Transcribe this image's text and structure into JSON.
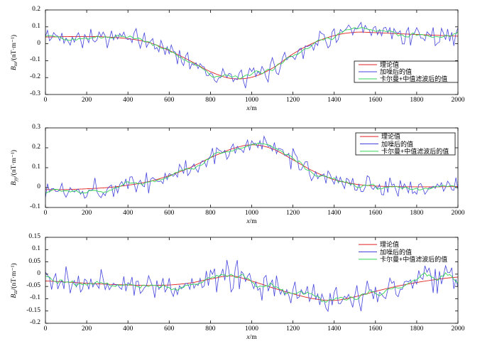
{
  "figure": {
    "background": "#ffffff",
    "axis_color": "#000000",
    "text_color": "#000000"
  },
  "chart_data": [
    {
      "type": "line",
      "xlabel": {
        "var": "x",
        "unit": "/m"
      },
      "ylabel": {
        "var": "B",
        "sub": "xx",
        "unit": "/(nT·m⁻¹)"
      },
      "xlim": [
        0,
        2000
      ],
      "ylim": [
        -0.3,
        0.2
      ],
      "x_ticks": [
        0,
        200,
        400,
        600,
        800,
        1000,
        1200,
        1400,
        1600,
        1800,
        2000
      ],
      "y_ticks": [
        0.2,
        0.1,
        0,
        -0.1,
        -0.2,
        -0.3
      ],
      "x": [
        0,
        100,
        200,
        300,
        400,
        500,
        600,
        700,
        800,
        900,
        1000,
        1100,
        1200,
        1300,
        1400,
        1500,
        1600,
        1700,
        1800,
        1900,
        2000
      ],
      "series": [
        {
          "name": "理论值",
          "role": "theory",
          "color": "#e02222",
          "values": [
            0.04,
            0.042,
            0.043,
            0.04,
            0.03,
            0.008,
            -0.04,
            -0.1,
            -0.165,
            -0.205,
            -0.198,
            -0.145,
            -0.06,
            0.005,
            0.048,
            0.068,
            0.066,
            0.06,
            0.055,
            0.05,
            0.045
          ]
        },
        {
          "name": "加噪后的值",
          "role": "noisy",
          "color": "#4444dd",
          "noise_amplitude": 0.075,
          "n_points": 201,
          "seed": 42
        },
        {
          "name": "卡尔曼+中值滤波后的值",
          "role": "filtered",
          "color": "#33d455",
          "smooth_window": 7
        }
      ],
      "legend": {
        "location": "lower-right-inside",
        "border": true,
        "entries": [
          "理论值",
          "加噪后的值",
          "卡尔曼+中值滤波后的值"
        ]
      }
    },
    {
      "type": "line",
      "xlabel": {
        "var": "x",
        "unit": "/m"
      },
      "ylabel": {
        "var": "B",
        "sub": "yy",
        "unit": "/(nT·m⁻¹)"
      },
      "xlim": [
        0,
        2000
      ],
      "ylim": [
        -0.1,
        0.3
      ],
      "x_ticks": [
        0,
        200,
        400,
        600,
        800,
        1000,
        1200,
        1400,
        1600,
        1800,
        2000
      ],
      "y_ticks": [
        0.3,
        0.2,
        0.1,
        0,
        -0.1
      ],
      "x": [
        0,
        100,
        200,
        300,
        400,
        500,
        600,
        700,
        800,
        900,
        1000,
        1100,
        1200,
        1300,
        1400,
        1500,
        1600,
        1700,
        1800,
        1900,
        2000
      ],
      "series": [
        {
          "name": "理论值",
          "role": "theory",
          "color": "#e02222",
          "values": [
            -0.01,
            -0.01,
            -0.006,
            0.0,
            0.012,
            0.03,
            0.06,
            0.1,
            0.15,
            0.193,
            0.215,
            0.195,
            0.14,
            0.082,
            0.04,
            0.018,
            0.008,
            0.005,
            0.004,
            0.004,
            0.005
          ]
        },
        {
          "name": "加噪后的值",
          "role": "noisy",
          "color": "#4444dd",
          "noise_amplitude": 0.065,
          "n_points": 201,
          "seed": 1337
        },
        {
          "name": "卡尔曼+中值滤波后的值",
          "role": "filtered",
          "color": "#33d455",
          "smooth_window": 7
        }
      ],
      "legend": {
        "location": "upper-right-inside",
        "border": true,
        "entries": [
          "理论值",
          "加噪后的值",
          "卡尔曼+中值滤波后的值"
        ]
      }
    },
    {
      "type": "line",
      "xlabel": {
        "var": "x",
        "unit": "/m"
      },
      "ylabel": {
        "var": "B",
        "sub": "zz",
        "unit": "/(nT·m⁻¹)"
      },
      "xlim": [
        0,
        2000
      ],
      "ylim": [
        -0.2,
        0.15
      ],
      "x_ticks": [
        0,
        200,
        400,
        600,
        800,
        1000,
        1200,
        1400,
        1600,
        1800,
        2000
      ],
      "y_ticks": [
        0.15,
        0.1,
        0.05,
        0,
        -0.05,
        -0.1,
        -0.15,
        -0.2
      ],
      "x": [
        0,
        100,
        200,
        300,
        400,
        500,
        600,
        700,
        800,
        900,
        1000,
        1100,
        1200,
        1300,
        1400,
        1500,
        1600,
        1700,
        1800,
        1900,
        2000
      ],
      "series": [
        {
          "name": "理论值",
          "role": "theory",
          "color": "#e02222",
          "values": [
            -0.028,
            -0.032,
            -0.037,
            -0.041,
            -0.044,
            -0.046,
            -0.044,
            -0.036,
            -0.02,
            -0.007,
            -0.028,
            -0.055,
            -0.08,
            -0.1,
            -0.107,
            -0.092,
            -0.07,
            -0.05,
            -0.034,
            -0.021,
            -0.012
          ]
        },
        {
          "name": "加噪后的值",
          "role": "noisy",
          "color": "#4444dd",
          "noise_amplitude": 0.07,
          "n_points": 201,
          "seed": 2024
        },
        {
          "name": "卡尔曼+中值滤波后的值",
          "role": "filtered",
          "color": "#33d455",
          "smooth_window": 7
        }
      ],
      "legend": {
        "location": "upper-right-inside",
        "border": false,
        "entries": [
          "理论值",
          "加噪后的值",
          "卡尔曼+中值滤波后的值"
        ]
      }
    }
  ]
}
